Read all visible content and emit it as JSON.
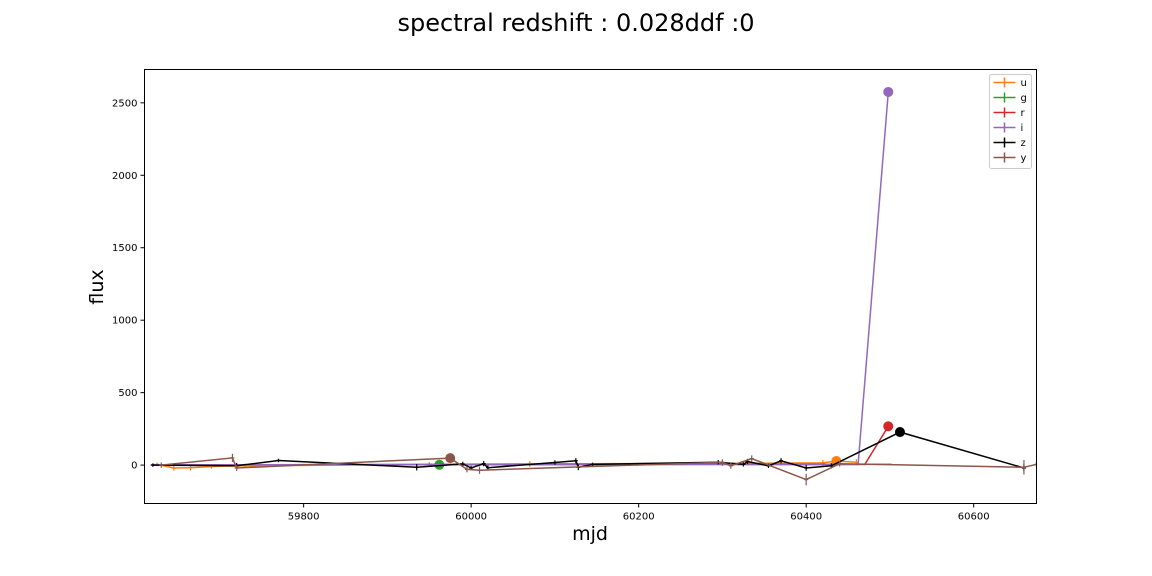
{
  "chart_data": {
    "type": "line",
    "title": "spectral redshift : 0.028ddf :0",
    "xlabel": "mjd",
    "ylabel": "flux",
    "xlim": [
      59610,
      60675
    ],
    "ylim": [
      -265,
      2730
    ],
    "xticks": [
      59800,
      60000,
      60200,
      60400,
      60600
    ],
    "yticks": [
      0,
      500,
      1000,
      1500,
      2000,
      2500
    ],
    "grid": false,
    "legend_position": "top-right",
    "series": [
      {
        "name": "u",
        "color": "#ff7f0e",
        "points": [
          [
            59625,
            5
          ],
          [
            59645,
            -20
          ],
          [
            59665,
            -18
          ],
          [
            59690,
            -10
          ],
          [
            59730,
            -5
          ],
          [
            59950,
            5
          ],
          [
            60070,
            8
          ],
          [
            60300,
            12
          ],
          [
            60420,
            15
          ],
          [
            60436,
            28
          ],
          [
            60460,
            20
          ]
        ],
        "errors": [
          12,
          18,
          20,
          15,
          15,
          15,
          20,
          18,
          20,
          22,
          20
        ],
        "marker": [
          60436,
          28
        ]
      },
      {
        "name": "g",
        "color": "#2ca02c",
        "points": [
          [
            59620,
            3
          ],
          [
            59800,
            2
          ],
          [
            59962,
            2
          ],
          [
            60100,
            4
          ],
          [
            60300,
            5
          ],
          [
            60420,
            6
          ],
          [
            60500,
            5
          ]
        ],
        "errors": [
          6,
          6,
          8,
          6,
          6,
          8,
          6
        ],
        "marker": [
          59962,
          2
        ]
      },
      {
        "name": "r",
        "color": "#d62728",
        "points": [
          [
            59620,
            2
          ],
          [
            59950,
            4
          ],
          [
            60150,
            5
          ],
          [
            60300,
            6
          ],
          [
            60400,
            4
          ],
          [
            60470,
            5
          ],
          [
            60498,
            268
          ]
        ],
        "errors": [
          6,
          6,
          6,
          6,
          6,
          6,
          8
        ],
        "marker": [
          60498,
          268
        ]
      },
      {
        "name": "i",
        "color": "#9467bd",
        "points": [
          [
            59620,
            2
          ],
          [
            59950,
            3
          ],
          [
            60200,
            5
          ],
          [
            60400,
            4
          ],
          [
            60462,
            5
          ],
          [
            60498,
            2575
          ]
        ],
        "errors": [
          6,
          6,
          6,
          6,
          6,
          10
        ],
        "marker": [
          60498,
          2575
        ]
      },
      {
        "name": "z",
        "color": "#000000",
        "points": [
          [
            59620,
            0
          ],
          [
            59720,
            -5
          ],
          [
            59770,
            32
          ],
          [
            59935,
            -15
          ],
          [
            59990,
            8
          ],
          [
            60000,
            -20
          ],
          [
            60015,
            10
          ],
          [
            60020,
            -18
          ],
          [
            60100,
            18
          ],
          [
            60125,
            30
          ],
          [
            60128,
            -15
          ],
          [
            60145,
            5
          ],
          [
            60295,
            20
          ],
          [
            60325,
            5
          ],
          [
            60330,
            25
          ],
          [
            60355,
            -5
          ],
          [
            60370,
            30
          ],
          [
            60400,
            -20
          ],
          [
            60430,
            -5
          ],
          [
            60512,
            228
          ],
          [
            60660,
            -20
          ]
        ],
        "errors": [
          12,
          20,
          12,
          22,
          15,
          15,
          18,
          15,
          15,
          18,
          20,
          12,
          15,
          15,
          18,
          15,
          18,
          20,
          18,
          20,
          25
        ],
        "marker": [
          60512,
          228
        ]
      },
      {
        "name": "y",
        "color": "#8c564b",
        "points": [
          [
            59630,
            0
          ],
          [
            59715,
            50
          ],
          [
            59720,
            -20
          ],
          [
            59975,
            48
          ],
          [
            59995,
            -30
          ],
          [
            60010,
            -35
          ],
          [
            60300,
            20
          ],
          [
            60310,
            -5
          ],
          [
            60335,
            45
          ],
          [
            60400,
            -100
          ],
          [
            60440,
            10
          ],
          [
            60660,
            -15
          ],
          [
            60675,
            5
          ]
        ],
        "errors": [
          18,
          28,
          20,
          10,
          20,
          25,
          20,
          20,
          22,
          40,
          20,
          50,
          20
        ],
        "marker": [
          59975,
          48
        ]
      }
    ]
  }
}
